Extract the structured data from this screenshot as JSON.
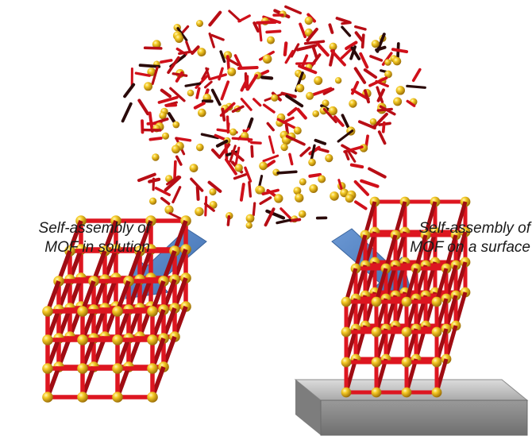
{
  "captions": {
    "left": {
      "line1": "Self-assembly  of",
      "line2": "MOF in solution"
    },
    "right": {
      "line1": "Self-assembly  of",
      "line2": "MOF on a surface"
    }
  },
  "colors": {
    "linker": "#d0101a",
    "linker_dark": "#8e0a10",
    "node": "#f2c21a",
    "node_dark": "#a87a06",
    "arrow": "#4f7fc0",
    "arrow_edge": "#3b659e",
    "surface_top": "#c4c4c4",
    "surface_side": "#8a8a8a"
  },
  "icons": [
    "disordered-building-blocks",
    "solution-mof-cube",
    "surface-mof-cube",
    "substrate-surface",
    "arrow-icon"
  ]
}
